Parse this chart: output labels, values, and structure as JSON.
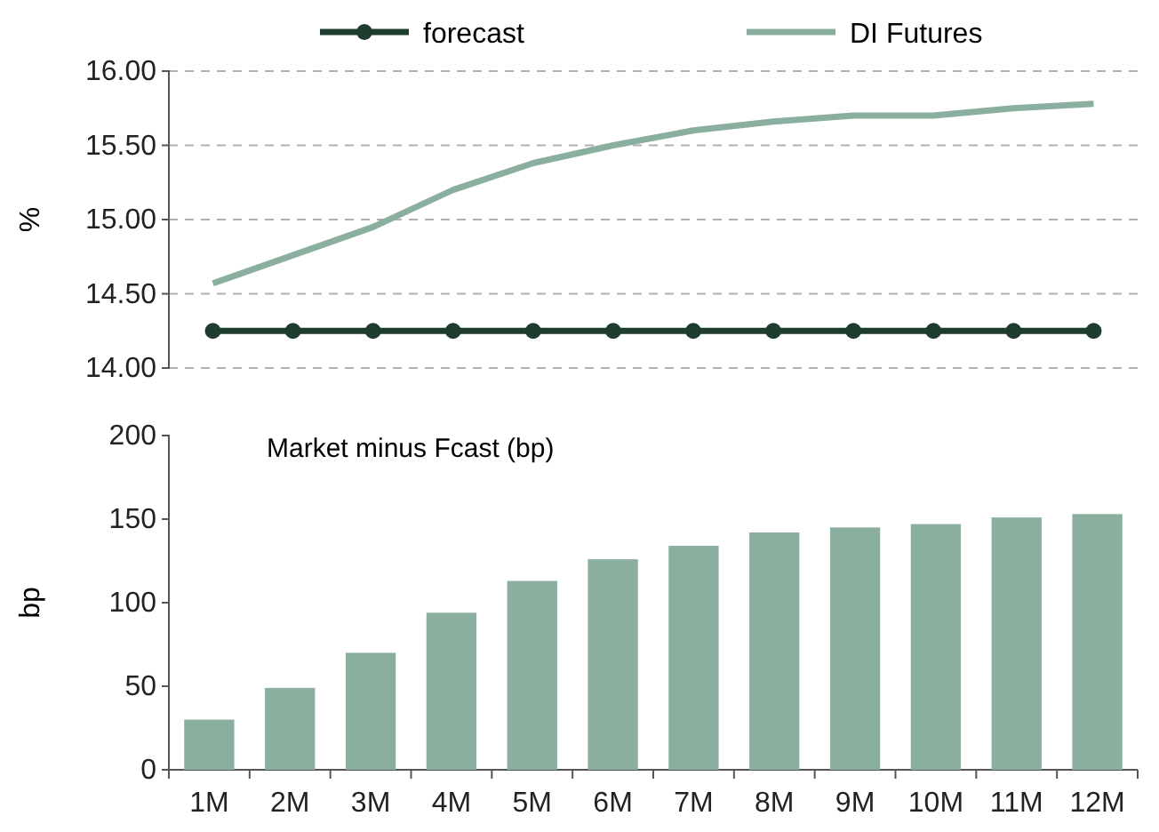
{
  "chart_data": [
    {
      "type": "line",
      "categories": [
        "1M",
        "2M",
        "3M",
        "4M",
        "5M",
        "6M",
        "7M",
        "8M",
        "9M",
        "10M",
        "11M",
        "12M"
      ],
      "ylabel": "%",
      "ylim": [
        14,
        16
      ],
      "yticks": [
        {
          "value": 14,
          "label": "14.00"
        },
        {
          "value": 14.5,
          "label": "14.50"
        },
        {
          "value": 15,
          "label": "15.00"
        },
        {
          "value": 15.5,
          "label": "15.50"
        },
        {
          "value": 16,
          "label": "16.00"
        }
      ],
      "grid": "y",
      "legend": "top",
      "tick_labels": "y",
      "series": [
        {
          "name": "forecast",
          "color": "#1f3d2e",
          "marker": "circle",
          "values": [
            14.25,
            14.25,
            14.25,
            14.25,
            14.25,
            14.25,
            14.25,
            14.25,
            14.25,
            14.25,
            14.25,
            14.25
          ]
        },
        {
          "name": "DI Futures",
          "color": "#8aaf9f",
          "marker": "none",
          "values": [
            14.57,
            14.76,
            14.95,
            15.2,
            15.38,
            15.5,
            15.6,
            15.66,
            15.7,
            15.7,
            15.75,
            15.78
          ]
        }
      ]
    },
    {
      "type": "bar",
      "title": "Market minus Fcast (bp)",
      "categories": [
        "1M",
        "2M",
        "3M",
        "4M",
        "5M",
        "6M",
        "7M",
        "8M",
        "9M",
        "10M",
        "11M",
        "12M"
      ],
      "ylabel": "bp",
      "ylim": [
        0,
        200
      ],
      "yticks": [
        0,
        50,
        100,
        150,
        200
      ],
      "color": "#8aaf9f",
      "values": [
        30,
        49,
        70,
        94,
        113,
        126,
        134,
        142,
        145,
        147,
        151,
        153
      ]
    }
  ]
}
